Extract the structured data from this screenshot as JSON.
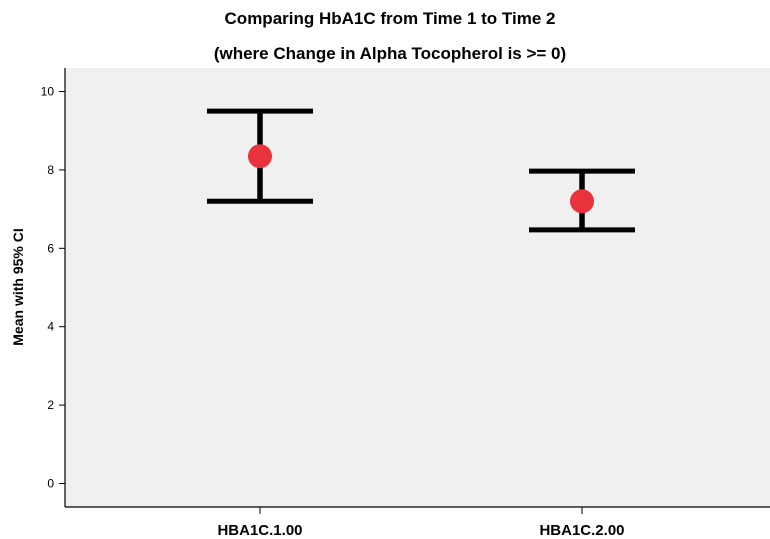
{
  "chart_data": {
    "type": "errorbar",
    "title": "Comparing HbA1C from Time 1 to Time 2",
    "subtitle": "(where Change in Alpha Tocopherol is >= 0)",
    "xlabel": "",
    "ylabel": "Mean with 95% CI",
    "categories": [
      "HBA1C.1.00",
      "HBA1C.2.00"
    ],
    "means": [
      8.35,
      7.2
    ],
    "ci_lower": [
      7.2,
      6.47
    ],
    "ci_upper": [
      9.5,
      7.97
    ],
    "ylim": [
      -0.6,
      10.6
    ],
    "yticks": [
      0,
      2,
      4,
      6,
      8,
      10
    ],
    "grid": false,
    "legend": "none",
    "colors": {
      "marker": "#e8323c",
      "errorbar": "#000000",
      "plot_background": "#f0f0f0",
      "frame": "#000000"
    }
  }
}
